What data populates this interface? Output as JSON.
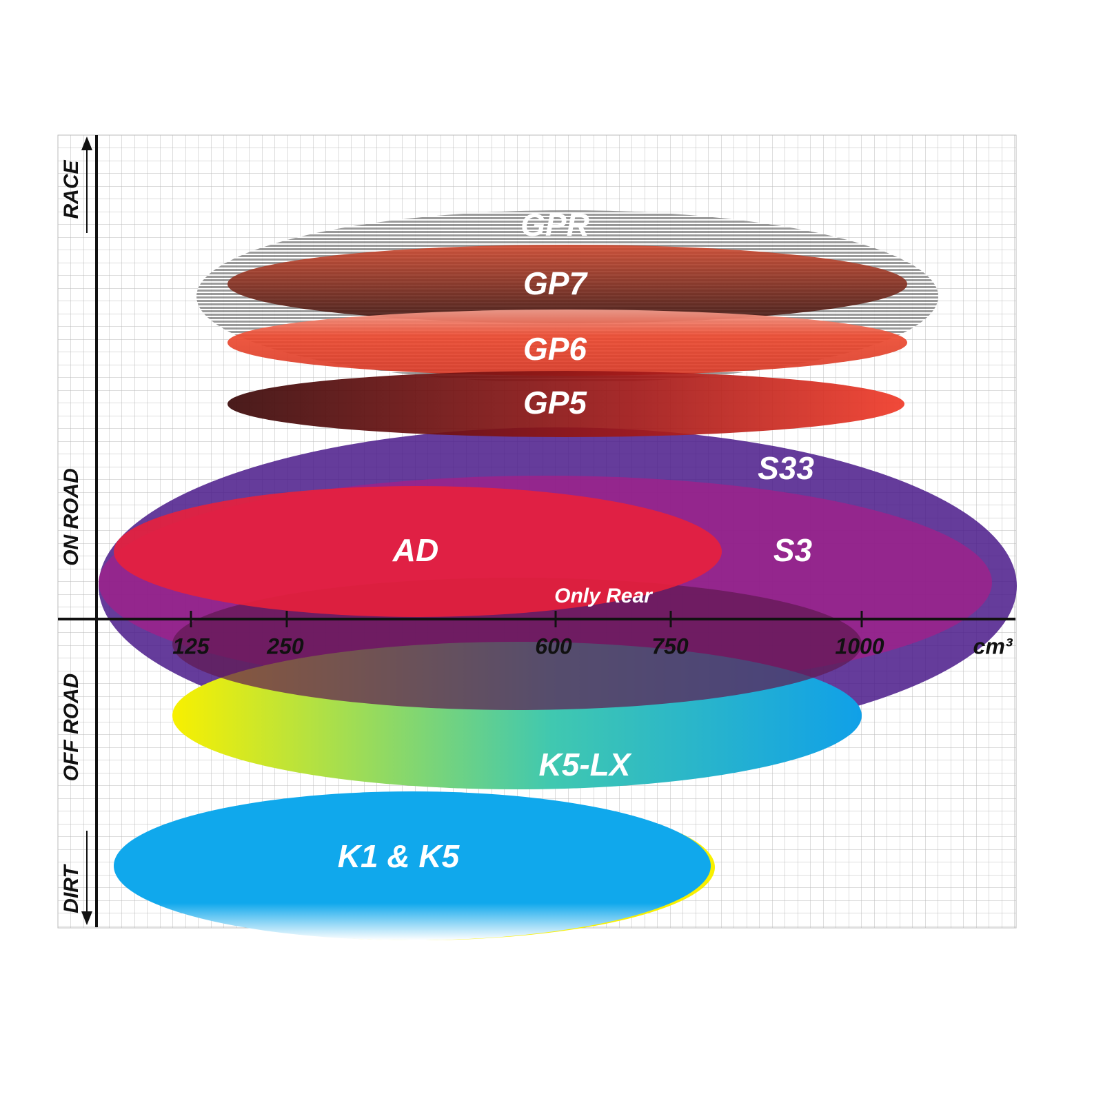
{
  "axis": {
    "y_labels": [
      "RACE",
      "ON ROAD",
      "OFF ROAD",
      "DIRT"
    ],
    "x_ticks": [
      "125",
      "250",
      "600",
      "750",
      "1000"
    ],
    "x_unit": "cm³"
  },
  "products": [
    {
      "label": "GPR"
    },
    {
      "label": "GP7"
    },
    {
      "label": "GP6"
    },
    {
      "label": "GP5"
    },
    {
      "label": "S33"
    },
    {
      "label": "S3"
    },
    {
      "label": "AD"
    },
    {
      "label": "Only Rear"
    },
    {
      "label": "K5-LX"
    },
    {
      "label": "K1 & K5"
    }
  ]
}
